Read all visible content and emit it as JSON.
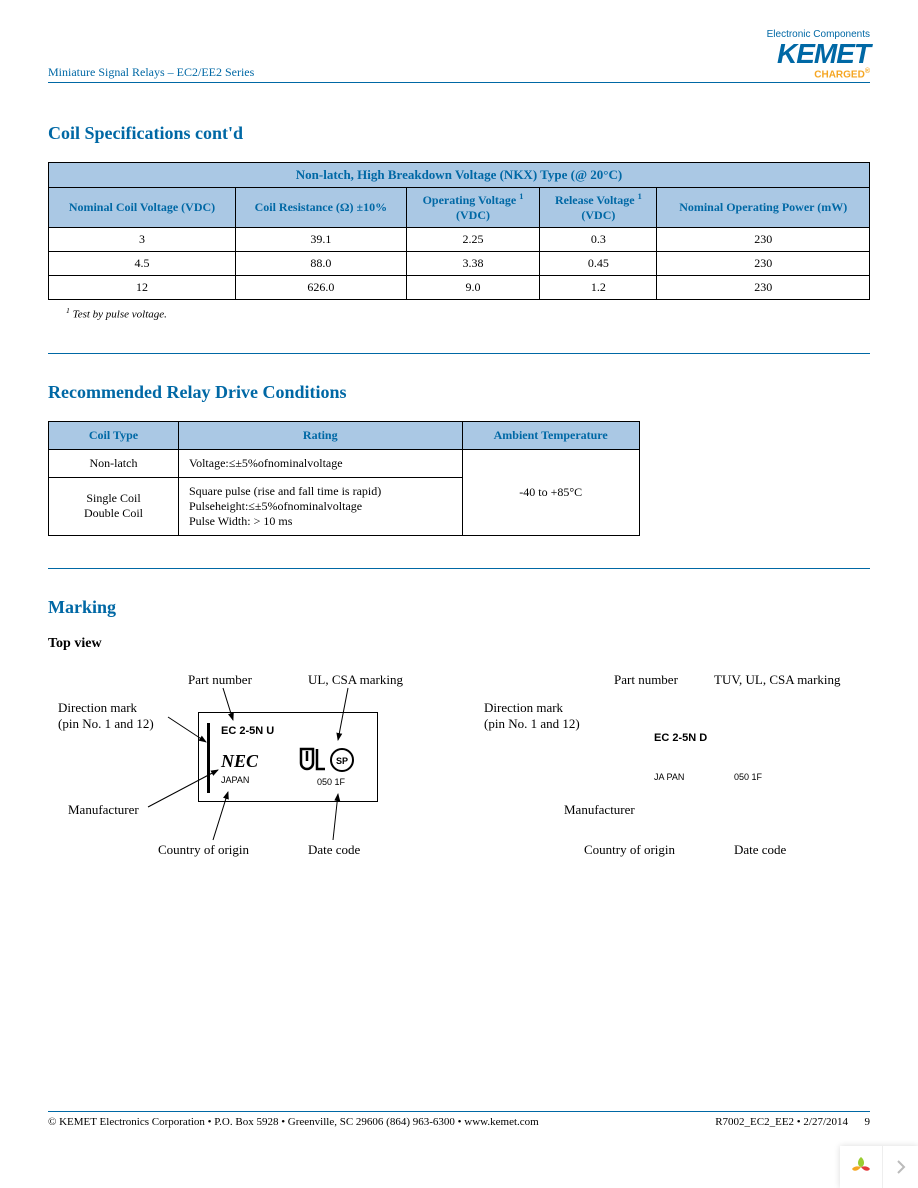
{
  "header": {
    "doc_title": "Miniature Signal Relays – EC2/EE2 Series",
    "logo_top": "Electronic Components",
    "logo_main": "KEMET",
    "logo_sub": "CHARGED"
  },
  "section1": {
    "title": "Coil Specifications cont'd",
    "super_header": "Non-latch, High Breakdown Voltage (NKX) Type (@ 20°C)",
    "columns": [
      "Nominal Coil Voltage (VDC)",
      "Coil Resistance (Ω) ±10%",
      "Operating Voltage",
      "Release Voltage",
      "Nominal Operating Power (mW)"
    ],
    "col_unit_vdc": "(VDC)",
    "rows": [
      [
        "3",
        "39.1",
        "2.25",
        "0.3",
        "230"
      ],
      [
        "4.5",
        "88.0",
        "3.38",
        "0.45",
        "230"
      ],
      [
        "12",
        "626.0",
        "9.0",
        "1.2",
        "230"
      ]
    ],
    "footnote_marker": "1",
    "footnote": "Test by pulse voltage."
  },
  "section2": {
    "title": "Recommended Relay Drive Conditions",
    "columns": [
      "Coil Type",
      "Rating",
      "Ambient Temperature"
    ],
    "row1": {
      "type": "Non-latch",
      "rating": "Voltage:≤±5%ofnominalvoltage"
    },
    "row2": {
      "type_line1": "Single Coil",
      "type_line2": "Double Coil",
      "rating_line1": "Square pulse (rise and fall time is rapid)",
      "rating_line2": "Pulseheight:≤±5%ofnominalvoltage",
      "rating_line3": "Pulse Width: > 10 ms"
    },
    "ambient": "-40 to +85°C"
  },
  "section3": {
    "title": "Marking",
    "top_view": "Top view",
    "left": {
      "part_number": "Part number",
      "ul_csa": "UL, CSA marking",
      "direction_l1": "Direction mark",
      "direction_l2": "(pin No. 1 and 12)",
      "manufacturer": "Manufacturer",
      "country": "Country of origin",
      "datecode": "Date code",
      "relay_part": "EC 2-5N U",
      "relay_mfr": "NEC",
      "relay_country": "JAPAN",
      "relay_code": "050 1F"
    },
    "right": {
      "part_number": "Part number",
      "tuv_ul_csa": "TUV, UL, CSA marking",
      "direction_l1": "Direction mark",
      "direction_l2": "(pin No. 1 and 12)",
      "manufacturer": "Manufacturer",
      "country": "Country of origin",
      "datecode": "Date code",
      "relay_part": "EC 2-5N D",
      "relay_country": "JA PAN",
      "relay_code": "050 1F"
    }
  },
  "footer": {
    "left": "© KEMET Electronics Corporation • P.O. Box 5928 • Greenville, SC 29606 (864) 963-6300 • www.kemet.com",
    "right": "R7002_EC2_EE2 • 2/27/2014",
    "page": "9"
  }
}
